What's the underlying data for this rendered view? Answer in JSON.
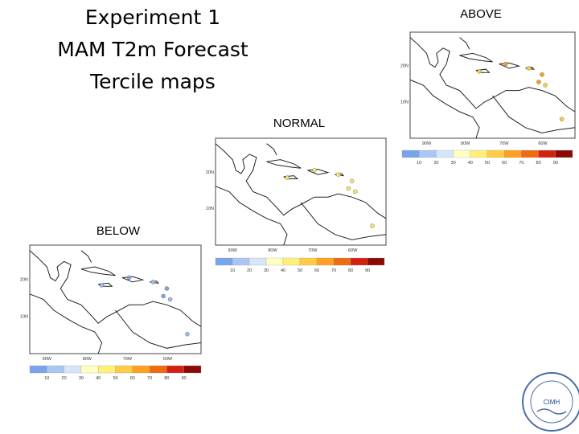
{
  "title": [
    "Experiment 1",
    "MAM T2m Forecast",
    "Tercile maps"
  ],
  "maps": [
    {
      "label": "ABOVE",
      "lat_labels": [
        "20N",
        "10N"
      ],
      "lon_labels": [
        "90W",
        "80W",
        "70W",
        "60W"
      ],
      "colorbar_labels": [
        10,
        20,
        30,
        40,
        50,
        60,
        70,
        80,
        90
      ]
    },
    {
      "label": "NORMAL",
      "lat_labels": [
        "20N",
        "10N"
      ],
      "lon_labels": [
        "90W",
        "80W",
        "70W",
        "60W"
      ],
      "colorbar_labels": [
        10,
        20,
        30,
        40,
        50,
        60,
        70,
        80,
        90
      ]
    },
    {
      "label": "BELOW",
      "lat_labels": [
        "20N",
        "10N"
      ],
      "lon_labels": [
        "90W",
        "80W",
        "70W",
        "60W"
      ],
      "colorbar_labels": [
        10,
        20,
        30,
        40,
        50,
        60,
        70,
        80,
        90
      ]
    }
  ],
  "colorbar_colors": [
    "#78a4ee",
    "#aac7f3",
    "#d6e5fa",
    "#ffffc0",
    "#fff07a",
    "#ffcc44",
    "#ffa020",
    "#f06a10",
    "#d42010",
    "#8b0a05"
  ],
  "logo": {
    "text": "CIMH"
  }
}
